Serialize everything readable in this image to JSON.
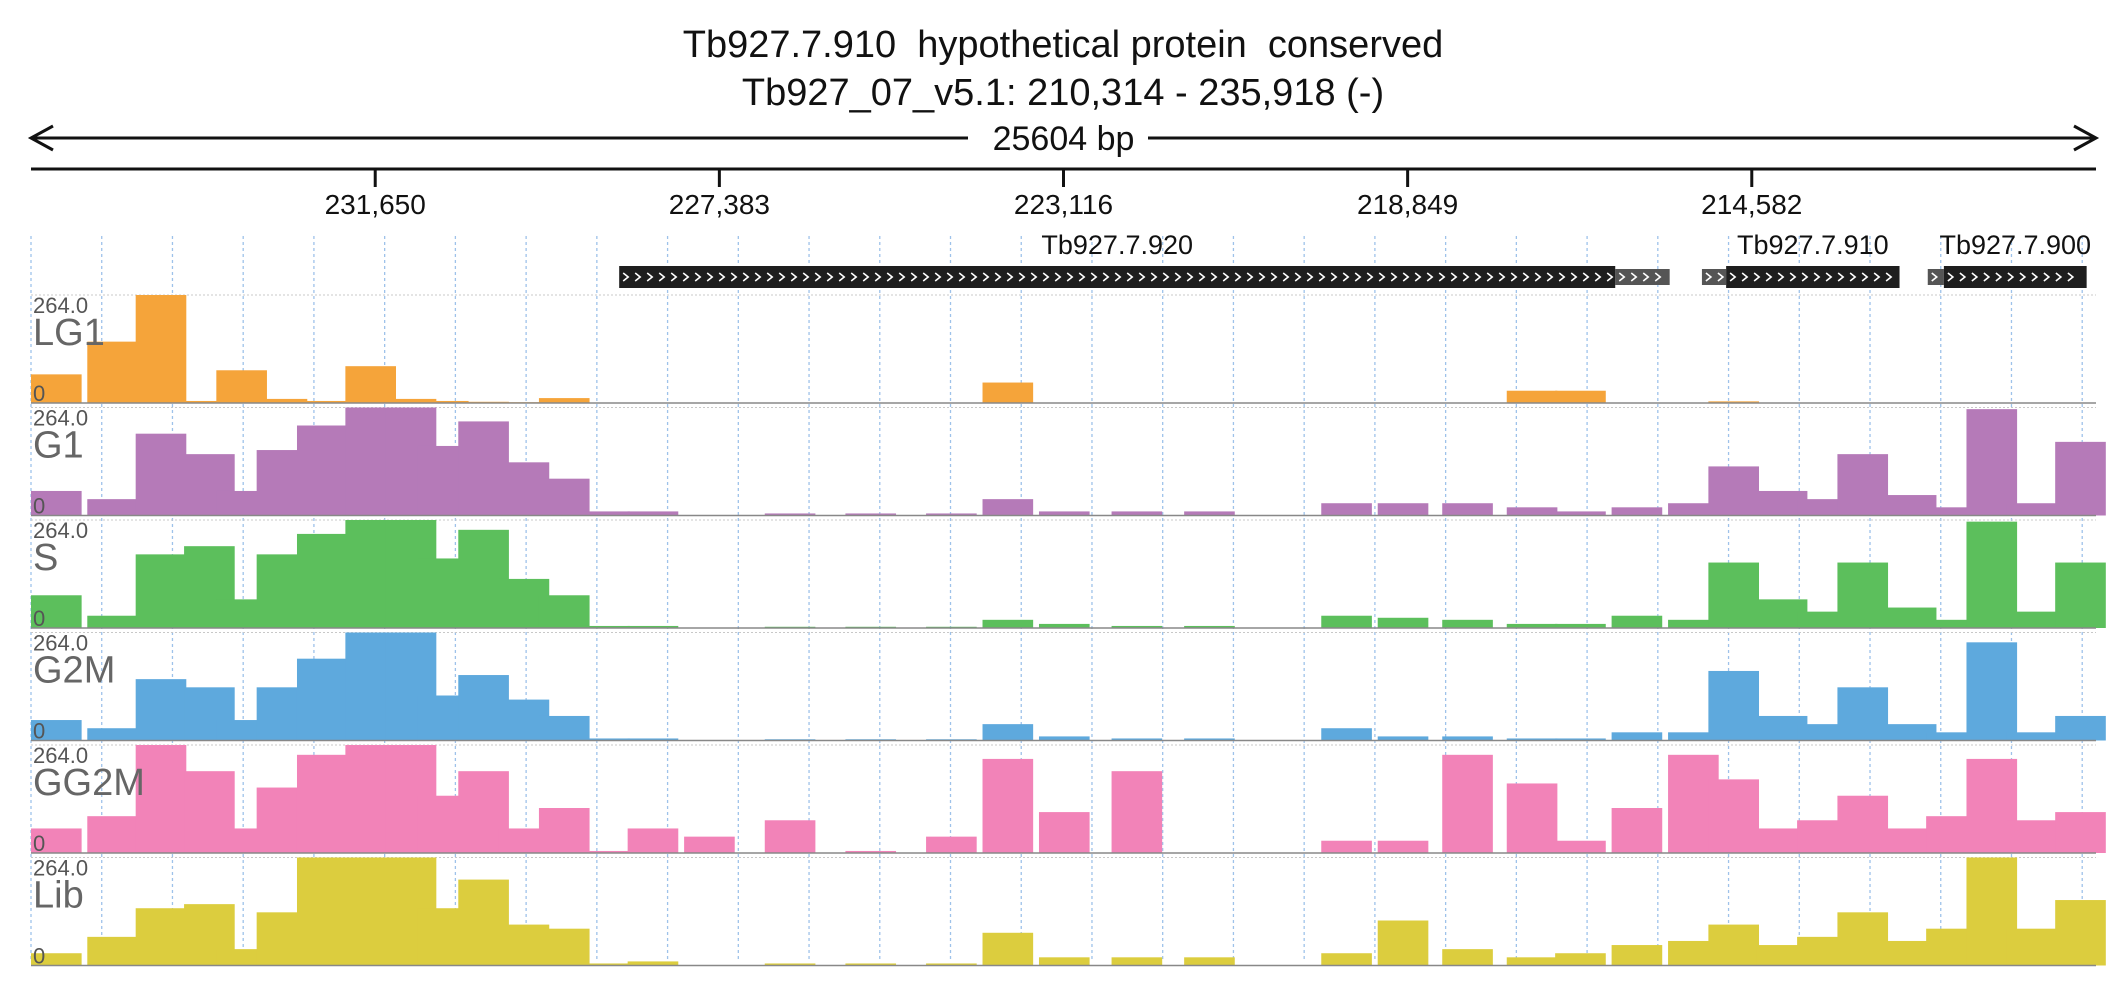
{
  "title_line1": "Tb927.7.910  hypothetical protein  conserved",
  "title_line2": "Tb927_07_v5.1: 210,314 - 235,918 (-)",
  "span_label": "25604 bp",
  "colors": {
    "LG1": "#f5a43a",
    "G1": "#b57ab8",
    "S": "#5cbf5c",
    "G2M": "#5ea9dd",
    "GG2M": "#f283b8",
    "Lib": "#dccd3e",
    "gene": "#1e1e1e",
    "utr": "#555555",
    "grid": "#9ec2ea"
  },
  "chart_data": {
    "type": "area",
    "region": {
      "chromosome": "Tb927_07_v5.1",
      "start": 210314,
      "end": 235918,
      "strand": "-"
    },
    "x_ticks": [
      {
        "value": 231650,
        "label": "231,650"
      },
      {
        "value": 227383,
        "label": "227,383"
      },
      {
        "value": 223116,
        "label": "223,116"
      },
      {
        "value": 218849,
        "label": "218,849"
      },
      {
        "value": 214582,
        "label": "214,582"
      }
    ],
    "genes": [
      {
        "name": "Tb927.7.920",
        "cds_start": 228625,
        "cds_end": 216275,
        "utr_start": 216275,
        "utr_end": 215600
      },
      {
        "name": "Tb927.7.910",
        "cds_start": 214900,
        "cds_end": 212750,
        "utr_start": 215200,
        "utr_end": 214900
      },
      {
        "name": "Tb927.7.900",
        "cds_start": 212200,
        "cds_end": 210430,
        "utr_start": 212400,
        "utr_end": 212200
      }
    ],
    "ylim": [
      0,
      264.0
    ],
    "ymax_label": "264.0",
    "ymin_label": "0",
    "bin_positions": [
      235800,
      234900,
      234300,
      233700,
      233300,
      232800,
      232300,
      231700,
      231200,
      230800,
      230300,
      229800,
      229300,
      228800,
      228200,
      227500,
      226500,
      225500,
      224500,
      223800,
      223100,
      222200,
      221300,
      220500,
      219600,
      218900,
      218100,
      217300,
      216700,
      216000,
      215300,
      214800,
      214200,
      213700,
      213200,
      212600,
      212100,
      211600,
      211100,
      210500
    ],
    "series": [
      {
        "name": "LG1",
        "values": [
          70,
          150,
          264,
          5,
          80,
          10,
          5,
          90,
          10,
          5,
          3,
          2,
          12,
          0,
          0,
          0,
          0,
          0,
          0,
          50,
          0,
          0,
          0,
          0,
          0,
          0,
          0,
          30,
          30,
          0,
          0,
          4,
          0,
          0,
          0,
          0,
          0,
          0,
          0,
          0
        ]
      },
      {
        "name": "G1",
        "values": [
          60,
          40,
          200,
          150,
          60,
          160,
          220,
          264,
          264,
          170,
          230,
          130,
          90,
          10,
          10,
          0,
          5,
          5,
          5,
          40,
          10,
          10,
          10,
          0,
          30,
          30,
          30,
          20,
          10,
          20,
          30,
          120,
          60,
          40,
          150,
          50,
          20,
          260,
          30,
          180
        ]
      },
      {
        "name": "S",
        "values": [
          80,
          30,
          180,
          200,
          70,
          180,
          230,
          264,
          264,
          170,
          240,
          120,
          80,
          5,
          5,
          0,
          3,
          3,
          3,
          20,
          10,
          5,
          5,
          0,
          30,
          25,
          20,
          10,
          10,
          30,
          20,
          160,
          70,
          40,
          160,
          50,
          20,
          260,
          40,
          160
        ]
      },
      {
        "name": "G2M",
        "values": [
          50,
          30,
          150,
          130,
          50,
          130,
          200,
          264,
          264,
          110,
          160,
          100,
          60,
          5,
          5,
          0,
          3,
          3,
          3,
          40,
          10,
          5,
          5,
          0,
          30,
          10,
          10,
          5,
          5,
          20,
          20,
          170,
          60,
          40,
          130,
          40,
          20,
          240,
          20,
          60
        ]
      },
      {
        "name": "GG2M",
        "values": [
          60,
          90,
          264,
          200,
          60,
          160,
          240,
          264,
          264,
          140,
          200,
          60,
          110,
          5,
          60,
          40,
          80,
          5,
          40,
          230,
          100,
          200,
          0,
          0,
          30,
          30,
          240,
          170,
          30,
          110,
          240,
          180,
          60,
          80,
          140,
          60,
          90,
          230,
          80,
          100
        ]
      },
      {
        "name": "Lib",
        "values": [
          30,
          70,
          140,
          150,
          40,
          130,
          264,
          264,
          264,
          140,
          210,
          100,
          90,
          5,
          10,
          0,
          5,
          5,
          5,
          80,
          20,
          20,
          20,
          0,
          30,
          110,
          40,
          20,
          30,
          50,
          60,
          100,
          50,
          70,
          130,
          60,
          90,
          264,
          90,
          160
        ]
      }
    ]
  }
}
